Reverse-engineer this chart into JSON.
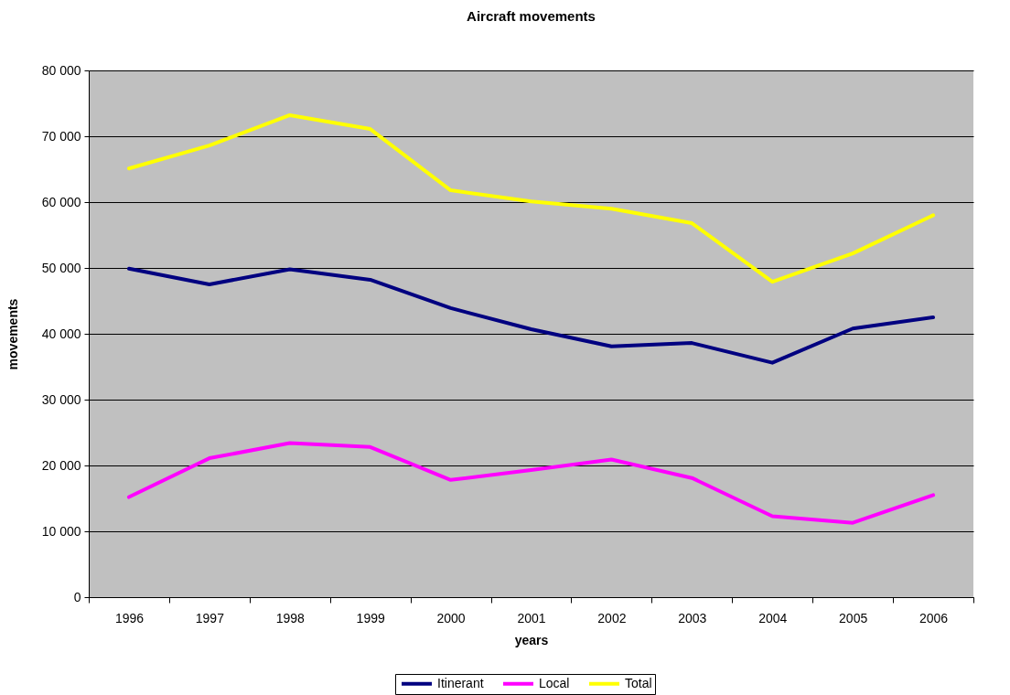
{
  "chart_data": {
    "type": "line",
    "title": "Aircraft movements",
    "xlabel": "years",
    "ylabel": "movements",
    "categories": [
      "1996",
      "1997",
      "1998",
      "1999",
      "2000",
      "2001",
      "2002",
      "2003",
      "2004",
      "2005",
      "2006"
    ],
    "series": [
      {
        "name": "Itinerant",
        "color": "#000080",
        "values": [
          49900,
          47500,
          49800,
          48200,
          43900,
          40700,
          38100,
          38600,
          35600,
          40800,
          42500
        ]
      },
      {
        "name": "Local",
        "color": "#ff00ff",
        "values": [
          15200,
          21100,
          23400,
          22800,
          17800,
          19300,
          20900,
          18100,
          12300,
          11300,
          15500
        ]
      },
      {
        "name": "Total",
        "color": "#ffff00",
        "values": [
          65100,
          68600,
          73200,
          71100,
          61800,
          60100,
          59000,
          56800,
          47900,
          52200,
          58000
        ]
      }
    ],
    "ylim": [
      0,
      80000
    ],
    "yticks": [
      0,
      {
        "value": 10000,
        "label": "10 000"
      },
      {
        "value": 20000,
        "label": "20 000"
      },
      {
        "value": 30000,
        "label": "30 000"
      },
      {
        "value": 40000,
        "label": "40 000"
      },
      {
        "value": 50000,
        "label": "50 000"
      },
      {
        "value": 60000,
        "label": "60 000"
      },
      {
        "value": 70000,
        "label": "70 000"
      },
      {
        "value": 80000,
        "label": "80 000"
      }
    ],
    "grid": "y",
    "legend": "bottom",
    "marker": "none",
    "line_style": "solid"
  }
}
